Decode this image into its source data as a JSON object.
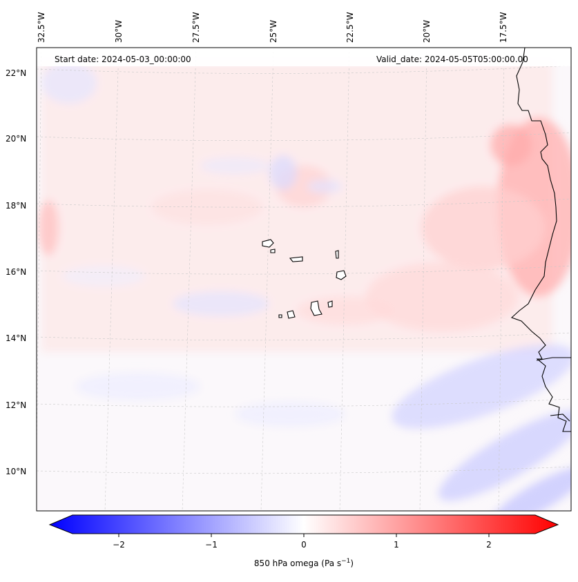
{
  "figure": {
    "start_date": "Start date: 2024-05-03_00:00:00",
    "valid_date": "Valid_date: 2024-05-05T05:00:00.00",
    "variable_label": "850 hPa omega (Pa s",
    "variable_label_sup": "−1",
    "variable_label_end": ")"
  },
  "lon_labels": [
    "32.5°W",
    "30°W",
    "27.5°W",
    "25°W",
    "22.5°W",
    "20°W",
    "17.5°W"
  ],
  "lat_labels": [
    "22°N",
    "20°N",
    "18°N",
    "16°N",
    "14°N",
    "12°N",
    "10°N"
  ],
  "colorbar": {
    "ticks": [
      "−2",
      "−1",
      "0",
      "1",
      "2"
    ],
    "min": -2.5,
    "max": 2.5,
    "colors": {
      "low": "#0000ff",
      "mid": "#ffffff",
      "high": "#ff0000"
    }
  },
  "chart_data": {
    "type": "heatmap",
    "title": "850 hPa omega",
    "units": "Pa s^-1",
    "extent": {
      "lon": [
        -32.7,
        -15.3
      ],
      "lat": [
        8.8,
        22.8
      ]
    },
    "value_range": [
      -2.5,
      2.5
    ],
    "features": [
      {
        "name": "Cape Verde islands",
        "region": "center"
      },
      {
        "name": "West African coast (Mauritania/Senegal)",
        "region": "east edge"
      }
    ]
  }
}
